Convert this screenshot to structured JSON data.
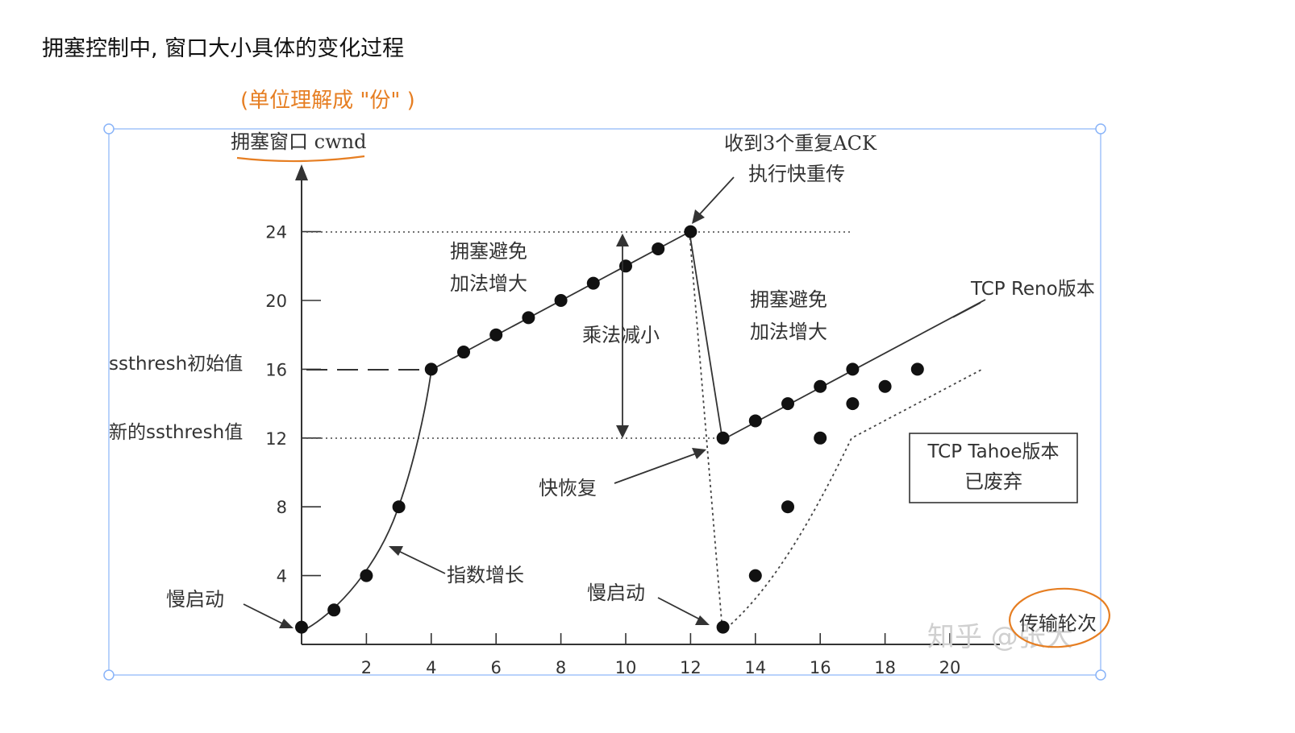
{
  "page": {
    "heading": "拥塞控制中, 窗口大小具体的变化过程",
    "unit_note": "(单位理解成 \"份\" )"
  },
  "diagram": {
    "y_axis_title": "拥塞窗口 cwnd",
    "x_axis_title": "传输轮次",
    "ylabel_initial_ssthresh": "ssthresh初始值",
    "ylabel_new_ssthresh": "新的ssthresh值",
    "annotations": {
      "three_dup_ack": "收到3个重复ACK",
      "fast_retransmit": "执行快重传",
      "ca1_line1": "拥塞避免",
      "ca1_line2": "加法增大",
      "ca2_line1": "拥塞避免",
      "ca2_line2": "加法增大",
      "mult_decrease": "乘法减小",
      "fast_recovery": "快恢复",
      "exp_growth": "指数增长",
      "slow_start_1": "慢启动",
      "slow_start_2": "慢启动",
      "reno": "TCP Reno版本",
      "tahoe_line1": "TCP Tahoe版本",
      "tahoe_line2": "已废弃"
    },
    "watermark": "知乎 @张大",
    "colors": {
      "accent_orange": "#e67e22",
      "selection_blue": "#8ab4f8",
      "ink": "#222222"
    }
  },
  "chart_data": {
    "type": "line",
    "x_ticks": [
      2,
      4,
      6,
      8,
      10,
      12,
      14,
      16,
      18,
      20
    ],
    "y_ticks": [
      4,
      8,
      12,
      16,
      20,
      24
    ],
    "series": [
      {
        "name": "",
        "x": [
          0,
          1,
          2,
          3,
          4,
          5,
          6,
          7,
          8,
          9,
          10,
          11,
          12,
          13,
          14,
          15,
          16,
          17
        ],
        "y": [
          1,
          2,
          4,
          8,
          16,
          17,
          18,
          19,
          20,
          21,
          22,
          23,
          24,
          12,
          13,
          14,
          15,
          16
        ]
      },
      {
        "name": "",
        "x": [
          13,
          14,
          15,
          16,
          17,
          18,
          19
        ],
        "y": [
          1,
          4,
          8,
          12,
          14,
          15,
          16
        ]
      }
    ],
    "ssthresh_initial": 16,
    "ssthresh_new": 12,
    "ylim": [
      0,
      26
    ],
    "xlim": [
      0,
      21
    ]
  }
}
